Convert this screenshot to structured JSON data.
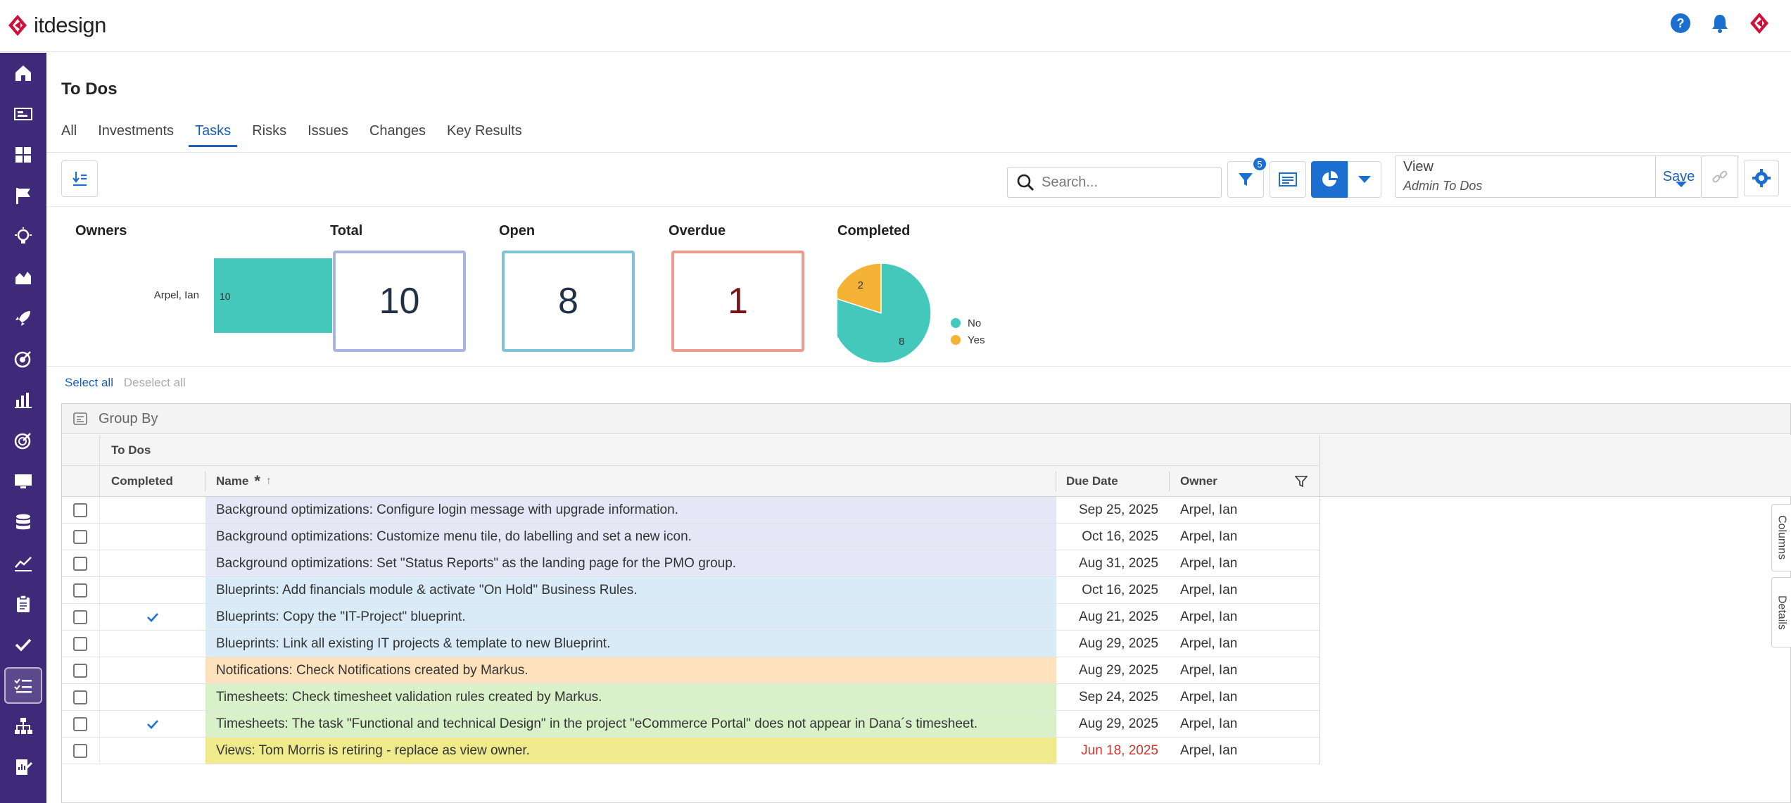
{
  "app": {
    "brand": "itdesign",
    "brand_color": "#d0103a",
    "accent": "#1a6fd0",
    "sidebar_color": "#3f2a7a"
  },
  "topbar": {
    "icons": [
      "help-icon",
      "bell-icon",
      "itdesign-logo-icon"
    ]
  },
  "sidebar": {
    "items": [
      "home-icon",
      "portfolio-icon",
      "dashboard-icon",
      "flag-icon",
      "bulb-icon",
      "area-chart-icon",
      "rocket-icon",
      "target-icon",
      "bar-chart-icon",
      "goal-icon",
      "monitor-icon",
      "database-icon",
      "line-chart-icon",
      "clipboard-icon",
      "check-icon",
      "todo-list-icon",
      "hierarchy-icon",
      "report-icon"
    ],
    "active": "todo-list-icon"
  },
  "page": {
    "title": "To Dos"
  },
  "tabs": [
    {
      "label": "All"
    },
    {
      "label": "Investments"
    },
    {
      "label": "Tasks",
      "active": true
    },
    {
      "label": "Risks"
    },
    {
      "label": "Issues"
    },
    {
      "label": "Changes"
    },
    {
      "label": "Key Results"
    }
  ],
  "toolbar": {
    "search_placeholder": "Search...",
    "filter_count": "5",
    "view_label": "View",
    "view_value": "Admin To Dos",
    "save_label": "Save"
  },
  "summary": {
    "owners": {
      "title": "Owners",
      "name": "Arpel, Ian",
      "value": "10"
    },
    "total": {
      "title": "Total",
      "value": "10",
      "color": "#a9b4e0"
    },
    "open": {
      "title": "Open",
      "value": "8",
      "color": "#7fc3d9"
    },
    "overdue": {
      "title": "Overdue",
      "value": "1",
      "color": "#ef9a8e"
    },
    "completed": {
      "title": "Completed"
    }
  },
  "chart_data": [
    {
      "type": "bar",
      "title": "Owners",
      "categories": [
        "Arpel, Ian"
      ],
      "values": [
        10
      ],
      "color": "#45c8bc"
    },
    {
      "type": "pie",
      "title": "Completed",
      "labels": [
        "No",
        "Yes"
      ],
      "values": [
        8,
        2
      ],
      "colors": [
        "#45c8bc",
        "#f5b335"
      ],
      "legend": "right"
    }
  ],
  "selection": {
    "select_all": "Select all",
    "deselect_all": "Deselect all"
  },
  "grid": {
    "group_by": "Group By",
    "group_header": "To Dos",
    "columns": {
      "completed": "Completed",
      "name": "Name",
      "due": "Due Date",
      "owner": "Owner"
    },
    "side_tabs": {
      "columns": "Columns",
      "details": "Details"
    },
    "rows": [
      {
        "name": "Background optimizations: Configure login message with upgrade information.",
        "due": "Sep 25, 2025",
        "owner": "Arpel, Ian",
        "done": false,
        "color": "#e6e6f7",
        "overdue": false
      },
      {
        "name": "Background optimizations: Customize menu tile, do labelling and set a new icon.",
        "due": "Oct 16, 2025",
        "owner": "Arpel, Ian",
        "done": false,
        "color": "#e6e6f7",
        "overdue": false
      },
      {
        "name": "Background optimizations: Set \"Status Reports\" as the landing page for the PMO group.",
        "due": "Aug 31, 2025",
        "owner": "Arpel, Ian",
        "done": false,
        "color": "#e6e6f7",
        "overdue": false
      },
      {
        "name": "Blueprints: Add financials module & activate \"On Hold\" Business Rules.",
        "due": "Oct 16, 2025",
        "owner": "Arpel, Ian",
        "done": false,
        "color": "#d8ebf6",
        "overdue": false
      },
      {
        "name": "Blueprints: Copy the \"IT-Project\" blueprint.",
        "due": "Aug 21, 2025",
        "owner": "Arpel, Ian",
        "done": true,
        "color": "#d8ebf6",
        "overdue": false
      },
      {
        "name": "Blueprints: Link all existing IT projects & template to new Blueprint.",
        "due": "Aug 29, 2025",
        "owner": "Arpel, Ian",
        "done": false,
        "color": "#d8ebf6",
        "overdue": false
      },
      {
        "name": "Notifications: Check Notifications created by Markus.",
        "due": "Aug 29, 2025",
        "owner": "Arpel, Ian",
        "done": false,
        "color": "#fde2bd",
        "overdue": false
      },
      {
        "name": "Timesheets: Check timesheet validation rules created by Markus.",
        "due": "Sep 24, 2025",
        "owner": "Arpel, Ian",
        "done": false,
        "color": "#d8f1c9",
        "overdue": false
      },
      {
        "name": "Timesheets: The task \"Functional and technical Design\" in the project \"eCommerce Portal\" does not appear in Dana´s timesheet.",
        "due": "Aug 29, 2025",
        "owner": "Arpel, Ian",
        "done": true,
        "color": "#d8f1c9",
        "overdue": false
      },
      {
        "name": "Views: Tom Morris is retiring - replace as view owner.",
        "due": "Jun 18, 2025",
        "owner": "Arpel, Ian",
        "done": false,
        "color": "#efeb8c",
        "overdue": true
      }
    ]
  }
}
